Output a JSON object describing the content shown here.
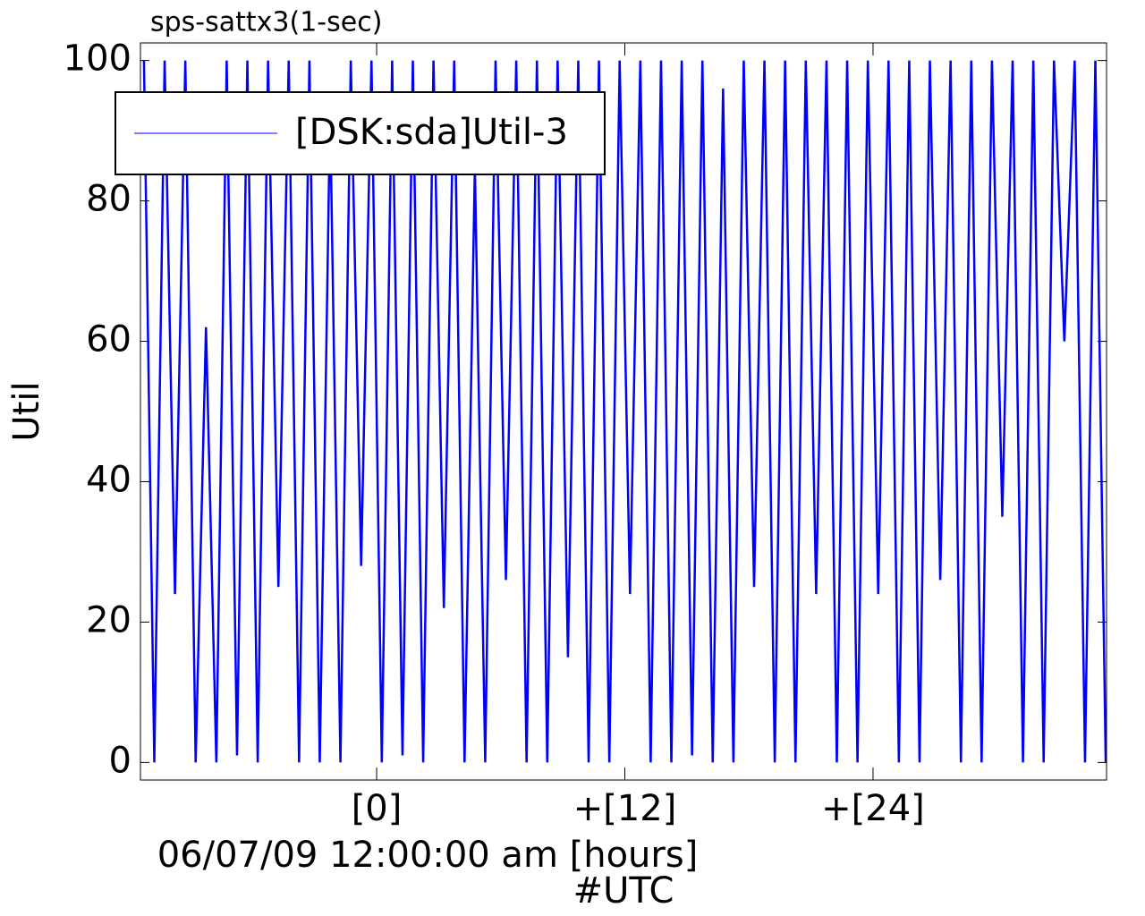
{
  "chart_data": {
    "type": "line",
    "title": "sps-sattx3(1-sec)",
    "y_label": "Util",
    "x_label": "06/07/09 12:00:00 am [hours]",
    "x_sublabel": "#UTC",
    "xlim": [
      -11.42,
      35.29
    ],
    "ylim": [
      -2.5,
      102.5
    ],
    "xticks": [
      {
        "value": 0,
        "label": "[0]"
      },
      {
        "value": 12,
        "label": "+[12]"
      },
      {
        "value": 24,
        "label": "+[24]"
      }
    ],
    "yticks": [
      0,
      20,
      40,
      60,
      80,
      100
    ],
    "legend": "top-left",
    "x": [
      -11.25,
      -10.75,
      -10.25,
      -9.75,
      -9.25,
      -8.75,
      -8.25,
      -7.75,
      -7.25,
      -6.75,
      -6.25,
      -5.75,
      -5.25,
      -4.75,
      -4.25,
      -3.75,
      -3.25,
      -2.75,
      -2.25,
      -1.75,
      -1.25,
      -0.75,
      -0.25,
      0.25,
      0.75,
      1.25,
      1.75,
      2.25,
      2.75,
      3.25,
      3.75,
      4.25,
      4.75,
      5.25,
      5.75,
      6.25,
      6.75,
      7.25,
      7.75,
      8.25,
      8.75,
      9.25,
      9.75,
      10.25,
      10.75,
      11.25,
      11.75,
      12.25,
      12.75,
      13.25,
      13.75,
      14.25,
      14.75,
      15.25,
      15.75,
      16.25,
      16.75,
      17.25,
      17.75,
      18.25,
      18.75,
      19.25,
      19.75,
      20.25,
      20.75,
      21.25,
      21.75,
      22.25,
      22.75,
      23.25,
      23.75,
      24.25,
      24.75,
      25.25,
      25.75,
      26.25,
      26.75,
      27.25,
      27.75,
      28.25,
      28.75,
      29.25,
      29.75,
      30.25,
      30.75,
      31.25,
      31.75,
      32.25,
      32.75,
      33.25,
      33.75,
      34.25,
      34.75,
      35.25
    ],
    "series": [
      {
        "name": "[DSK:sda]Util-3",
        "color": "#0000ff",
        "values": [
          100,
          0,
          100,
          24,
          100,
          0,
          62,
          0,
          100,
          1,
          100,
          0,
          100,
          25,
          100,
          0,
          100,
          0,
          93,
          0,
          100,
          28,
          100,
          0,
          100,
          1,
          100,
          0,
          100,
          22,
          100,
          0,
          85,
          0,
          100,
          26,
          100,
          0,
          100,
          0,
          100,
          15,
          100,
          0,
          100,
          0,
          100,
          24,
          100,
          0,
          100,
          0,
          100,
          1,
          100,
          0,
          96,
          0,
          100,
          25,
          100,
          0,
          100,
          0,
          100,
          24,
          100,
          0,
          100,
          0,
          100,
          24,
          100,
          0,
          100,
          0,
          100,
          26,
          100,
          0,
          100,
          0,
          100,
          35,
          100,
          0,
          100,
          0,
          100,
          60,
          100,
          0,
          100,
          0
        ]
      }
    ]
  }
}
